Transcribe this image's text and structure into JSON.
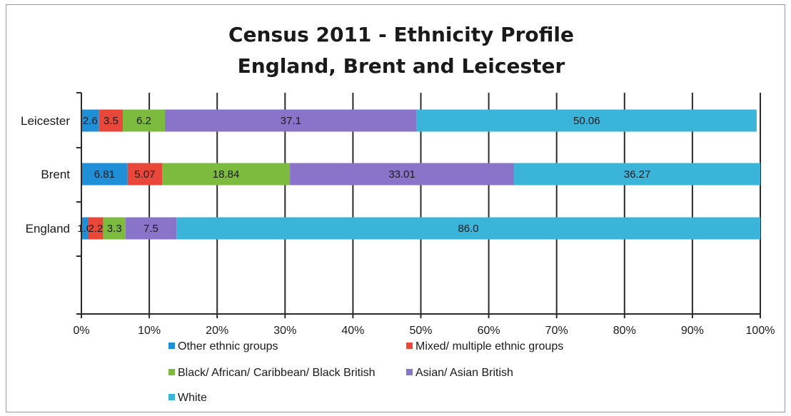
{
  "chart_data": {
    "type": "bar",
    "orientation": "horizontal",
    "stacked": "percent",
    "title": "Census 2011 - Ethnicity Profile",
    "subtitle": "England, Brent and Leicester",
    "categories": [
      "Leicester",
      "Brent",
      "England"
    ],
    "series": [
      {
        "name": "Other ethnic groups",
        "color": "#1f8fd8",
        "values": [
          2.6,
          6.81,
          1.0
        ],
        "labels": [
          "2.6",
          "6.81",
          "1.0"
        ]
      },
      {
        "name": "Mixed/ multiple ethnic groups",
        "color": "#e8473a",
        "values": [
          3.5,
          5.07,
          2.2
        ],
        "labels": [
          "3.5",
          "5.07",
          "2.2"
        ]
      },
      {
        "name": "Black/ African/ Caribbean/ Black British",
        "color": "#7dbb3e",
        "values": [
          6.2,
          18.84,
          3.3
        ],
        "labels": [
          "6.2",
          "18.84",
          "3.3"
        ]
      },
      {
        "name": "Asian/ Asian British",
        "color": "#8a74c9",
        "values": [
          37.1,
          33.01,
          7.5
        ],
        "labels": [
          "37.1",
          "33.01",
          "7.5"
        ]
      },
      {
        "name": "White",
        "color": "#3ab5d9",
        "values": [
          50.06,
          36.27,
          86.0
        ],
        "labels": [
          "50.06",
          "36.27",
          "86.0"
        ]
      }
    ],
    "xlim": [
      0,
      100
    ],
    "xticks": [
      "0%",
      "10%",
      "20%",
      "30%",
      "40%",
      "50%",
      "60%",
      "70%",
      "80%",
      "90%",
      "100%"
    ],
    "grid": "vertical",
    "legend_position": "bottom"
  }
}
